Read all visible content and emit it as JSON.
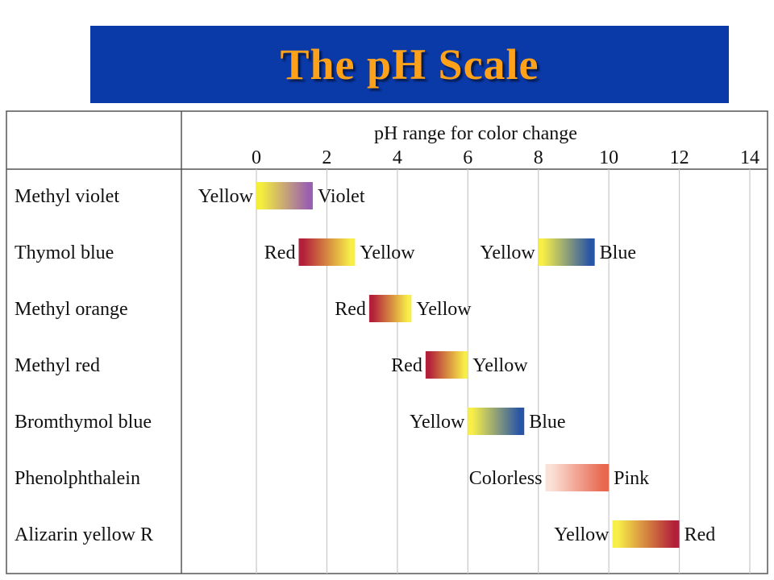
{
  "title": "The pH Scale",
  "chart_data": {
    "type": "table",
    "title": "The pH Scale",
    "xlabel": "pH range for color change",
    "xlim": [
      0,
      14
    ],
    "xticks": [
      0,
      2,
      4,
      6,
      8,
      10,
      12,
      14
    ],
    "grid": true,
    "indicators": [
      {
        "name": "Methyl violet",
        "ranges": [
          {
            "low": 0.0,
            "high": 1.6,
            "from_label": "Yellow",
            "to_label": "Violet",
            "from_color": "#f5ef3c",
            "to_color": "#9b5fb0"
          }
        ]
      },
      {
        "name": "Thymol blue",
        "ranges": [
          {
            "low": 1.2,
            "high": 2.8,
            "from_label": "Red",
            "to_label": "Yellow",
            "from_color": "#b3203a",
            "to_color": "#f7ee48"
          },
          {
            "low": 8.0,
            "high": 9.6,
            "from_label": "Yellow",
            "to_label": "Blue",
            "from_color": "#f7ee48",
            "to_color": "#2855a6"
          }
        ]
      },
      {
        "name": "Methyl orange",
        "ranges": [
          {
            "low": 3.2,
            "high": 4.4,
            "from_label": "Red",
            "to_label": "Yellow",
            "from_color": "#b3203a",
            "to_color": "#f7ee48"
          }
        ]
      },
      {
        "name": "Methyl red",
        "ranges": [
          {
            "low": 4.8,
            "high": 6.0,
            "from_label": "Red",
            "to_label": "Yellow",
            "from_color": "#b3203a",
            "to_color": "#f7ee48"
          }
        ]
      },
      {
        "name": "Bromthymol blue",
        "ranges": [
          {
            "low": 6.0,
            "high": 7.6,
            "from_label": "Yellow",
            "to_label": "Blue",
            "from_color": "#f7ee48",
            "to_color": "#2855a6"
          }
        ]
      },
      {
        "name": "Phenolphthalein",
        "ranges": [
          {
            "low": 8.2,
            "high": 10.0,
            "from_label": "Colorless",
            "to_label": "Pink",
            "from_color": "#fbe2d8",
            "to_color": "#e8674f"
          }
        ]
      },
      {
        "name": "Alizarin yellow R",
        "ranges": [
          {
            "low": 10.1,
            "high": 12.0,
            "from_label": "Yellow",
            "to_label": "Red",
            "from_color": "#f7ee48",
            "to_color": "#b3203a"
          }
        ]
      }
    ],
    "colors": {
      "grid": "#c8c8c8",
      "border": "#555555",
      "banner": "#0a39a8",
      "title_text": "#ffa21a"
    }
  }
}
